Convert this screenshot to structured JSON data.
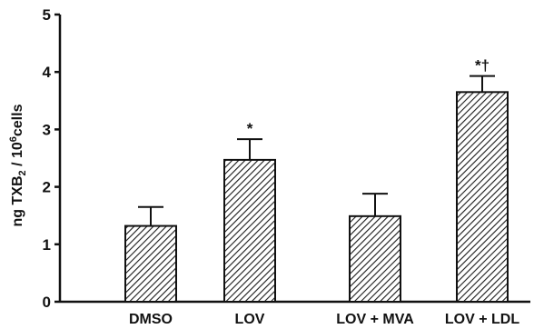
{
  "chart_data": {
    "type": "bar",
    "categories": [
      "DMSO",
      "LOV",
      "LOV + MVA",
      "LOV + LDL"
    ],
    "values": [
      1.32,
      2.47,
      1.49,
      3.65
    ],
    "errors": [
      0.33,
      0.36,
      0.39,
      0.28
    ],
    "annotations": [
      "",
      "*",
      "",
      "*†"
    ],
    "ylabel_parts": [
      "ng TXB",
      "2",
      " / 10",
      "6",
      "cells"
    ],
    "ylim": [
      0,
      5
    ],
    "yticks": [
      "0",
      "1",
      "2",
      "3",
      "4",
      "5"
    ],
    "bar_fill": "hatched-diagonal",
    "color": "#1a1a1a"
  }
}
